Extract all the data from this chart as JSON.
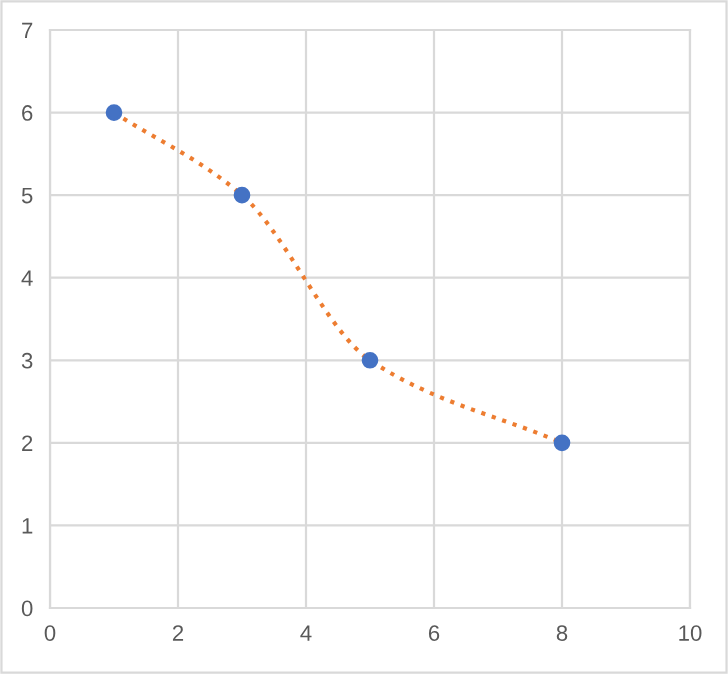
{
  "chart_data": {
    "type": "scatter",
    "x": [
      1,
      3,
      5,
      8
    ],
    "series": [
      {
        "type": "line",
        "color": "#ed7d31",
        "line_style": "dotted",
        "marker": "none",
        "values": [
          6,
          5,
          3,
          2
        ]
      },
      {
        "color": "#4472c4",
        "marker": "circle",
        "values": [
          6,
          5,
          3,
          2
        ]
      }
    ],
    "xlim": [
      0,
      10
    ],
    "xticks": [
      0,
      2,
      4,
      6,
      8,
      10
    ],
    "ylim": [
      0,
      7
    ],
    "yticks": [
      0,
      1,
      2,
      3,
      4,
      5,
      6,
      7
    ],
    "grid": true,
    "legend": false
  }
}
